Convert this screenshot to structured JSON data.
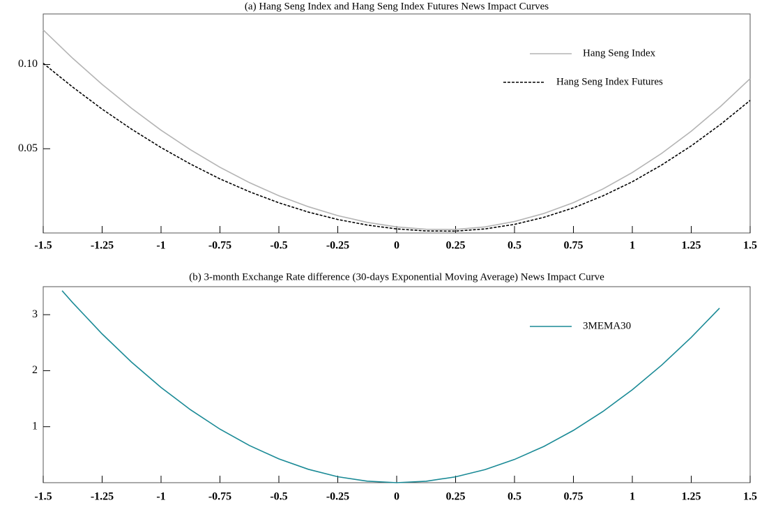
{
  "chart_data": [
    {
      "type": "line",
      "title": "(a) Hang Seng Index and Hang Seng Index Futures News Impact Curves",
      "x": [
        -1.5,
        -1.375,
        -1.25,
        -1.125,
        -1,
        -0.875,
        -0.75,
        -0.625,
        -0.5,
        -0.375,
        -0.25,
        -0.125,
        0,
        0.125,
        0.25,
        0.375,
        0.5,
        0.625,
        0.75,
        0.875,
        1,
        1.125,
        1.25,
        1.375,
        1.5
      ],
      "series": [
        {
          "name": "Hang Seng Index",
          "color": "#b4b4b4",
          "linestyle": "solid",
          "values": [
            0.1205,
            0.1037,
            0.0882,
            0.074,
            0.061,
            0.0494,
            0.039,
            0.0299,
            0.0221,
            0.0156,
            0.0103,
            0.0063,
            0.0036,
            0.0022,
            0.0021,
            0.0036,
            0.0068,
            0.0116,
            0.018,
            0.0261,
            0.0359,
            0.0473,
            0.0604,
            0.0752,
            0.0916
          ]
        },
        {
          "name": "Hang Seng Index Futures",
          "color": "#000000",
          "linestyle": "dashed",
          "values": [
            0.1007,
            0.0866,
            0.0735,
            0.0616,
            0.0507,
            0.0409,
            0.0321,
            0.0245,
            0.0179,
            0.0124,
            0.008,
            0.0047,
            0.0024,
            0.0012,
            0.0011,
            0.0024,
            0.0051,
            0.0093,
            0.0149,
            0.022,
            0.0304,
            0.0404,
            0.0517,
            0.0645,
            0.0787
          ]
        }
      ],
      "xlim": [
        -1.5,
        1.5
      ],
      "xticks": [
        -1.5,
        -1.25,
        -1,
        -0.75,
        -0.5,
        -0.25,
        0,
        0.25,
        0.5,
        0.75,
        1,
        1.25,
        1.5
      ],
      "ylim": [
        0,
        0.13
      ],
      "yticks": [
        0.05,
        {
          "value": 0.1,
          "label": "0.10"
        }
      ],
      "legend": "upper right"
    },
    {
      "type": "line",
      "title": "(b) 3-month Exchange Rate difference (30-days Exponential Moving Average) News Impact Curve",
      "x": [
        -1.42,
        -1.375,
        -1.25,
        -1.125,
        -1,
        -0.875,
        -0.75,
        -0.625,
        -0.5,
        -0.375,
        -0.25,
        -0.125,
        0,
        0.125,
        0.25,
        0.375,
        0.5,
        0.625,
        0.75,
        0.875,
        1,
        1.125,
        1.25,
        1.37
      ],
      "series": [
        {
          "name": "3MEMA30",
          "color": "#1a8a96",
          "linestyle": "solid",
          "values": [
            3.428,
            3.214,
            2.656,
            2.152,
            1.7,
            1.302,
            0.956,
            0.664,
            0.425,
            0.239,
            0.106,
            0.027,
            0,
            0.026,
            0.104,
            0.233,
            0.415,
            0.648,
            0.934,
            1.271,
            1.66,
            2.101,
            2.594,
            3.116
          ]
        }
      ],
      "xlim": [
        -1.5,
        1.5
      ],
      "xticks": [
        -1.5,
        -1.25,
        -1,
        -0.75,
        -0.5,
        -0.25,
        0,
        0.25,
        0.5,
        0.75,
        1,
        1.25,
        1.5
      ],
      "ylim": [
        0,
        3.5
      ],
      "yticks": [
        1,
        2,
        3
      ],
      "legend": "upper right"
    }
  ]
}
